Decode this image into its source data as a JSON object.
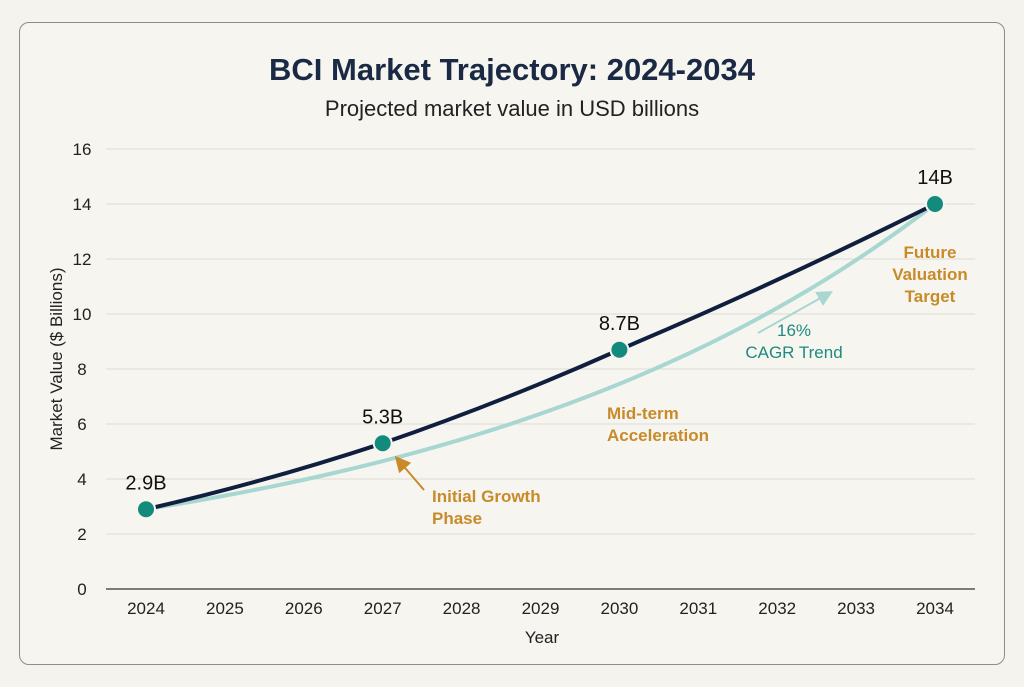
{
  "chart_data": {
    "type": "line",
    "title": "BCI Market Trajectory: 2024-2034",
    "subtitle": "Projected market value in USD billions",
    "xlabel": "Year",
    "ylabel": "Market Value ($ Billions)",
    "x": [
      2024,
      2025,
      2026,
      2027,
      2028,
      2029,
      2030,
      2031,
      2032,
      2033,
      2034
    ],
    "ylim": [
      0,
      16
    ],
    "yticks": [
      0,
      2,
      4,
      6,
      8,
      10,
      12,
      14,
      16
    ],
    "grid": true,
    "series": [
      {
        "points": [
          {
            "x": 2024,
            "y": 2.9,
            "label": "2.9B"
          },
          {
            "x": 2027,
            "y": 5.3,
            "label": "5.3B"
          },
          {
            "x": 2030,
            "y": 8.7,
            "label": "8.7B"
          },
          {
            "x": 2034,
            "y": 14,
            "label": "14B"
          }
        ],
        "color": "#0f1f3d",
        "marker_color": "#128a7c"
      },
      {
        "name": "16% CAGR Trend",
        "start": {
          "x": 2024,
          "y": 2.9
        },
        "end": {
          "x": 2034,
          "y": 14
        },
        "color": "#a8d6d1"
      }
    ],
    "annotations": [
      {
        "text": [
          "Initial Growth",
          "Phase"
        ],
        "color": "#c98a2a"
      },
      {
        "text": [
          "Mid-term",
          "Acceleration"
        ],
        "color": "#c98a2a"
      },
      {
        "text": [
          "Future",
          "Valuation",
          "Target"
        ],
        "color": "#c98a2a"
      },
      {
        "text": [
          "16%",
          "CAGR Trend"
        ],
        "color": "#1f8a80"
      }
    ]
  }
}
